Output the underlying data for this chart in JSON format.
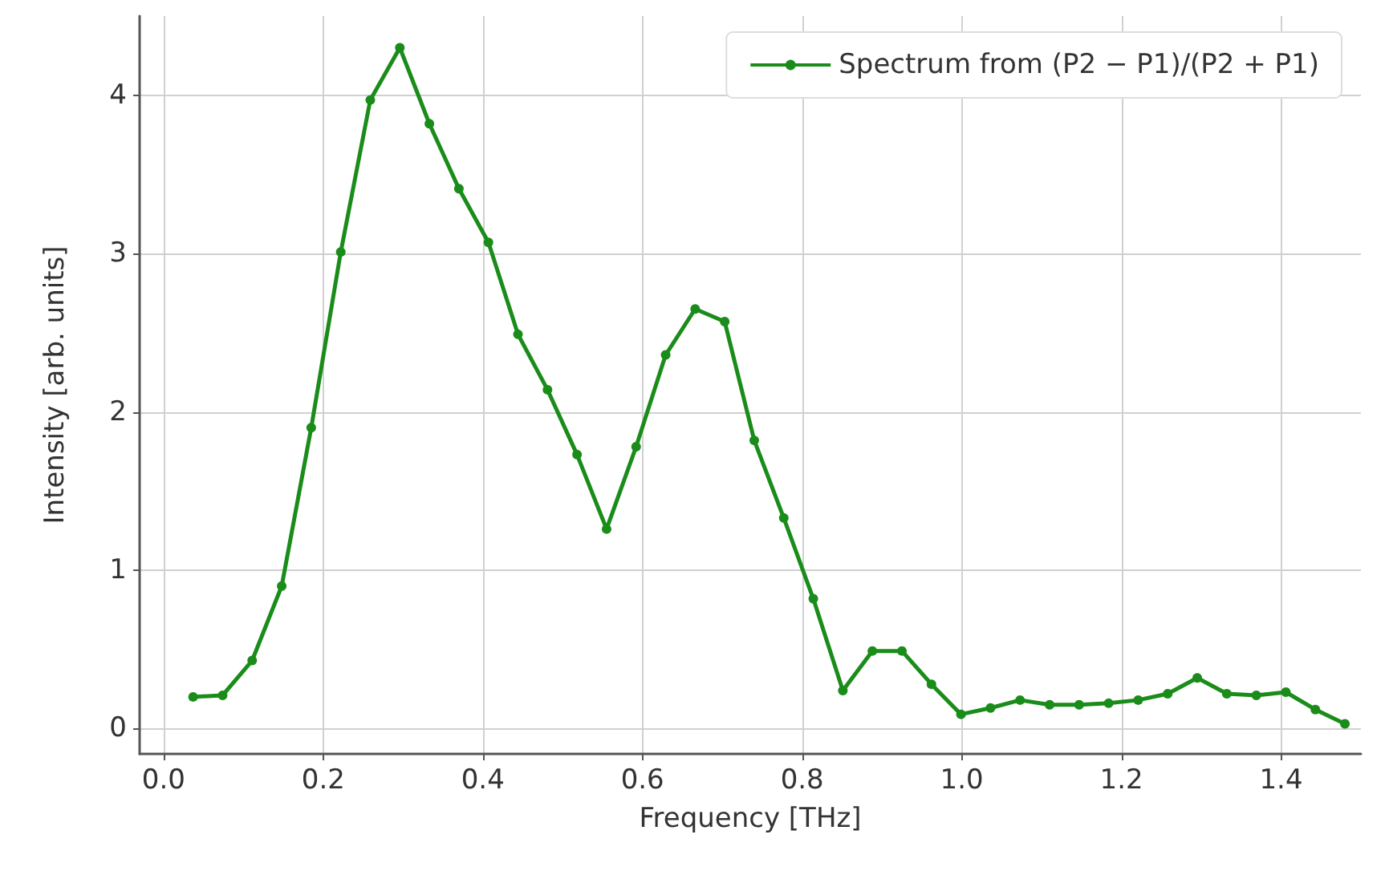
{
  "chart_data": {
    "type": "line",
    "xlabel": "Frequency [THz]",
    "ylabel": "Intensity [arb. units]",
    "x": [
      0.037,
      0.074,
      0.111,
      0.148,
      0.185,
      0.222,
      0.259,
      0.296,
      0.333,
      0.37,
      0.407,
      0.444,
      0.481,
      0.518,
      0.555,
      0.592,
      0.629,
      0.666,
      0.703,
      0.74,
      0.777,
      0.814,
      0.851,
      0.888,
      0.925,
      0.962,
      0.999,
      1.036,
      1.073,
      1.11,
      1.147,
      1.184,
      1.221,
      1.258,
      1.295,
      1.332,
      1.369,
      1.406,
      1.443,
      1.48
    ],
    "series": [
      {
        "name": "Spectrum from (P2 − P1)/(P2 + P1)",
        "color": "#1a8c1a",
        "values": [
          0.2,
          0.21,
          0.43,
          0.9,
          1.9,
          3.01,
          3.97,
          4.3,
          3.82,
          3.41,
          3.07,
          2.49,
          2.14,
          1.73,
          1.26,
          1.78,
          2.36,
          2.65,
          2.57,
          1.82,
          1.33,
          0.82,
          0.24,
          0.49,
          0.49,
          0.28,
          0.09,
          0.13,
          0.18,
          0.15,
          0.15,
          0.16,
          0.18,
          0.22,
          0.32,
          0.22,
          0.21,
          0.23,
          0.12,
          0.03
        ]
      }
    ],
    "xlim": [
      -0.03,
      1.5
    ],
    "ylim": [
      -0.16,
      4.5
    ],
    "xticks": [
      {
        "value": 0,
        "label": "0.0"
      },
      0.2,
      0.4,
      0.6,
      0.8,
      {
        "value": 1,
        "label": "1.0"
      },
      1.2,
      1.4
    ],
    "yticks": [
      0,
      1,
      2,
      3,
      4
    ],
    "grid": true,
    "legend": "top right",
    "marker": "circle",
    "line_style": "solid"
  }
}
